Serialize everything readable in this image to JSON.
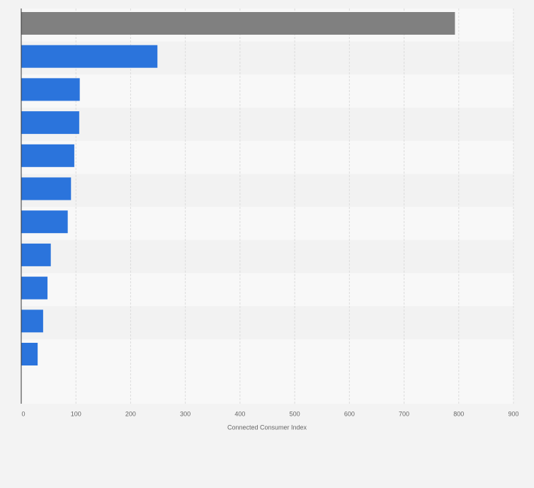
{
  "chart_data": {
    "type": "bar",
    "orientation": "horizontal",
    "xlabel": "Connected Consumer Index",
    "categories": [
      null,
      null,
      null,
      null,
      null,
      null,
      null,
      null,
      null,
      null,
      null
    ],
    "values": [
      793,
      249,
      107,
      106,
      97,
      91,
      85,
      54,
      48,
      40,
      30
    ],
    "colors": [
      "#808080",
      "#2b74dc",
      "#2b74dc",
      "#2b74dc",
      "#2b74dc",
      "#2b74dc",
      "#2b74dc",
      "#2b74dc",
      "#2b74dc",
      "#2b74dc",
      "#2b74dc"
    ],
    "xlim": [
      0,
      900
    ],
    "xticks": [
      0,
      100,
      200,
      300,
      400,
      500,
      600,
      700,
      800,
      900
    ],
    "grid": true
  }
}
